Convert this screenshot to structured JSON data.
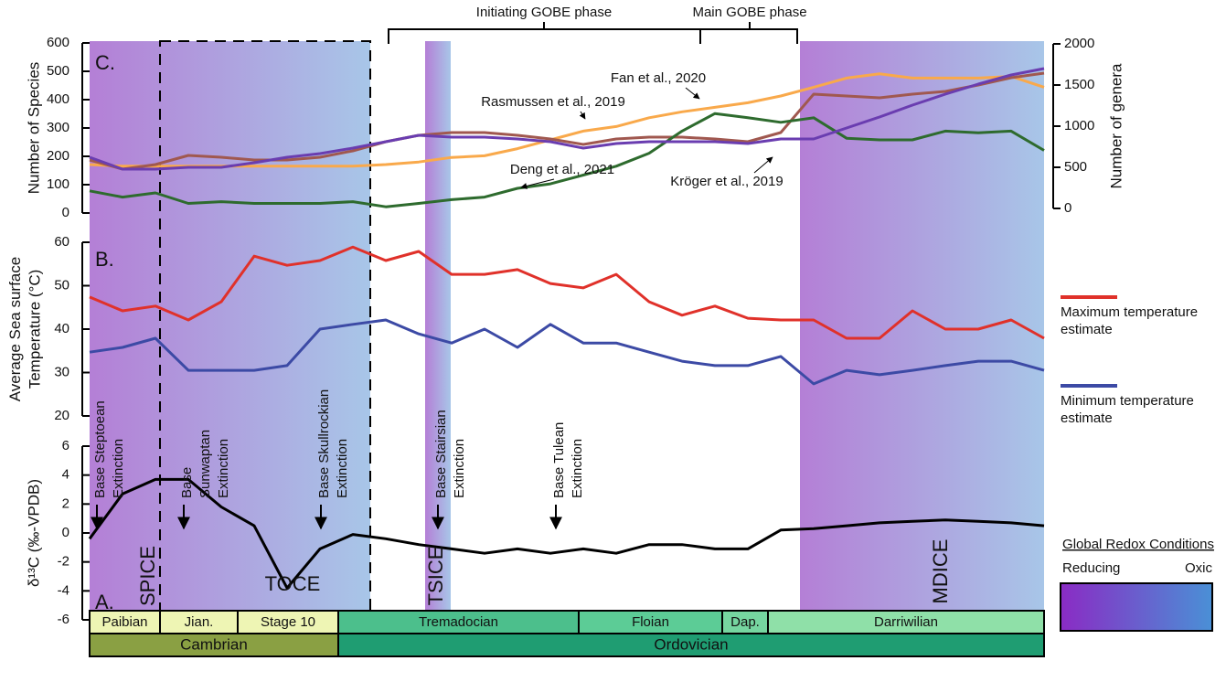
{
  "chart_data": [
    {
      "type": "line",
      "label": "C.",
      "ylabel": "Number of Species",
      "y2label": "Number of genera",
      "ylim": [
        0,
        600
      ],
      "yticks": [
        0,
        100,
        200,
        300,
        400,
        500,
        600
      ],
      "y2lim": [
        0,
        2000
      ],
      "y2ticks": [
        0,
        500,
        1000,
        1500,
        2000
      ],
      "series": [
        {
          "name": "Fan et al., 2020",
          "color": "#f9a94b",
          "values": [
            171,
            165,
            165,
            165,
            165,
            165,
            165,
            165,
            165,
            171,
            180,
            196,
            202,
            227,
            258,
            289,
            305,
            336,
            357,
            373,
            389,
            413,
            444,
            476,
            491,
            476,
            476,
            476,
            482,
            444
          ]
        },
        {
          "name": "Rasmussen et al., 2019",
          "color": "#a0584f",
          "axis": "y2",
          "values": [
            589,
            478,
            533,
            644,
            622,
            589,
            589,
            622,
            700,
            811,
            889,
            922,
            922,
            889,
            844,
            778,
            844,
            867,
            867,
            844,
            811,
            922,
            1389,
            1367,
            1344,
            1389,
            1422,
            1500,
            1589,
            1644
          ]
        },
        {
          "name": "Deng et al., 2021",
          "color": "#2e6b2e",
          "values": [
            78,
            56,
            71,
            34,
            40,
            34,
            34,
            34,
            40,
            22,
            34,
            47,
            56,
            87,
            103,
            134,
            165,
            211,
            289,
            351,
            336,
            320,
            336,
            264,
            258,
            258,
            289,
            283,
            289,
            221
          ]
        },
        {
          "name": "Kröger et al., 2019",
          "color": "#6a3db0",
          "axis": "y2",
          "values": [
            622,
            478,
            478,
            500,
            500,
            556,
            622,
            667,
            733,
            811,
            889,
            867,
            867,
            844,
            811,
            733,
            789,
            811,
            811,
            811,
            789,
            844,
            844,
            978,
            1111,
            1256,
            1389,
            1511,
            1622,
            1700
          ]
        }
      ]
    },
    {
      "type": "line",
      "label": "B.",
      "ylabel": "Average Sea surface Temperature (°C)",
      "ylim": [
        20,
        60
      ],
      "yticks": [
        20,
        30,
        40,
        50,
        60
      ],
      "series": [
        {
          "name": "Maximum temperature estimate",
          "color": "#e0312a",
          "values": [
            47.4,
            44.2,
            45.3,
            42.1,
            46.3,
            56.8,
            54.7,
            55.8,
            58.9,
            55.8,
            57.9,
            52.6,
            52.6,
            53.7,
            50.5,
            49.5,
            52.6,
            46.3,
            43.2,
            45.3,
            42.5,
            42.1,
            42.1,
            37.9,
            37.9,
            44.2,
            40,
            40,
            42.1,
            37.9
          ]
        },
        {
          "name": "Minimum temperature estimate",
          "color": "#3c4aa5",
          "values": [
            34.7,
            35.8,
            37.9,
            30.5,
            30.5,
            30.5,
            31.6,
            40,
            41.1,
            42.1,
            38.9,
            36.8,
            40,
            35.8,
            41.1,
            36.8,
            36.8,
            34.7,
            32.6,
            31.6,
            31.6,
            33.7,
            27.4,
            30.5,
            29.5,
            30.5,
            31.6,
            32.6,
            32.6,
            30.5
          ]
        }
      ]
    },
    {
      "type": "line",
      "label": "A.",
      "ylabel": "δ¹³C (‰-VPDB)",
      "ylim": [
        -6,
        6
      ],
      "yticks": [
        -6,
        -4,
        -2,
        0,
        2,
        4,
        6
      ],
      "series": [
        {
          "color": "#000000",
          "values": [
            -0.4,
            2.7,
            3.7,
            3.7,
            1.8,
            0.5,
            -3.8,
            -1.1,
            -0.1,
            -0.4,
            -0.8,
            -1.1,
            -1.4,
            -1.1,
            -1.4,
            -1.1,
            -1.4,
            -0.8,
            -0.8,
            -1.1,
            -1.1,
            0.2,
            0.3,
            0.5,
            0.7,
            0.8,
            0.9,
            0.8,
            0.7,
            0.5
          ]
        }
      ],
      "annotations": [
        {
          "lines": [
            "Base Steptoean",
            "Extinction"
          ]
        },
        {
          "lines": [
            "Base",
            "Sunwaptan",
            "Extinction"
          ]
        },
        {
          "lines": [
            "Base Skullrockian",
            "Extinction"
          ]
        },
        {
          "lines": [
            "Base Stairsian",
            "Extinction"
          ]
        },
        {
          "lines": [
            "Base Tulean",
            "Extinction"
          ]
        }
      ],
      "events": [
        "SPICE",
        "TOCE",
        "TSICE",
        "MDICE"
      ]
    }
  ],
  "phases": [
    "Initiating GOBE phase",
    "Main GOBE phase"
  ],
  "timescale": {
    "stages": [
      "Paibian",
      "Jian.",
      "Stage 10",
      "Tremadocian",
      "Floian",
      "Dap.",
      "Darriwilian"
    ],
    "periods": [
      "Cambrian",
      "Ordovician"
    ]
  },
  "redox_legend": {
    "title": "Global Redox Conditions",
    "low": "Reducing",
    "high": "Oxic"
  }
}
